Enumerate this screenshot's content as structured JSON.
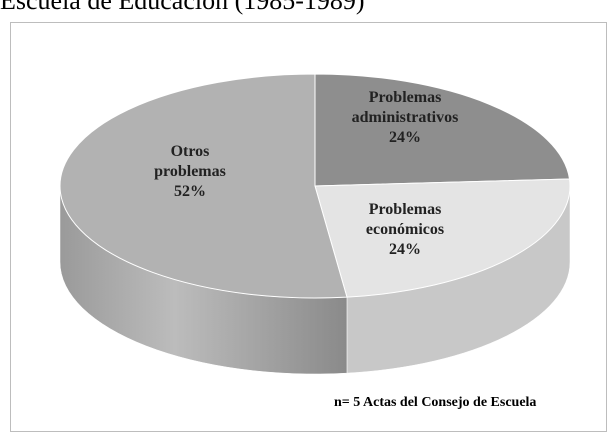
{
  "chart_data": {
    "type": "pie",
    "title": "Escuela de Educación (1985-1989)",
    "categories": [
      "Problemas administrativos",
      "Problemas económicos",
      "Otros problemas"
    ],
    "values": [
      24,
      24,
      52
    ],
    "value_labels": [
      "24%",
      "24%",
      "52%"
    ],
    "colors": [
      "#8e8e8e",
      "#e4e4e4",
      "#b2b2b2"
    ],
    "annotation": "n= 5 Actas del Consejo de Escuela"
  }
}
